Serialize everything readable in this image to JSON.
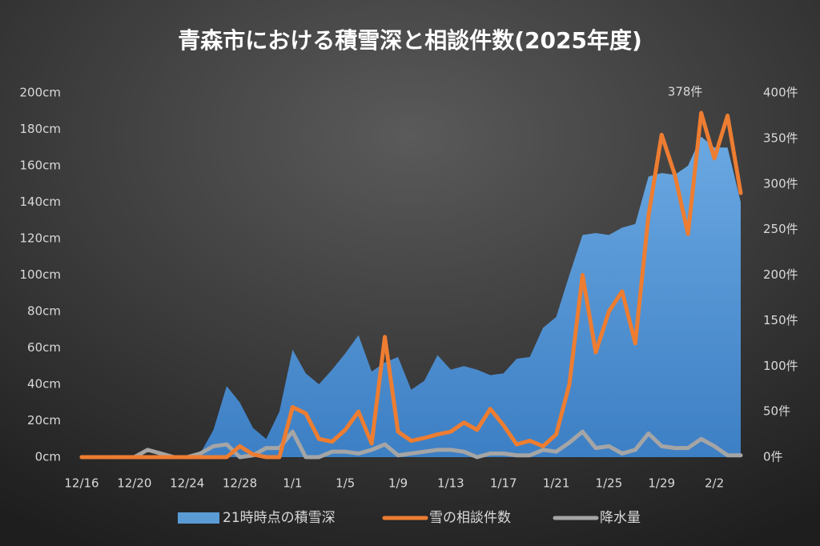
{
  "chart_data": {
    "type": "line",
    "title": "青森市における積雪深と相談件数(2025年度)",
    "categories": [
      "12/16",
      null,
      null,
      null,
      "12/20",
      null,
      null,
      null,
      "12/24",
      null,
      null,
      null,
      "12/28",
      null,
      null,
      null,
      "1/1",
      null,
      null,
      null,
      "1/5",
      null,
      null,
      null,
      "1/9",
      null,
      null,
      null,
      "1/13",
      null,
      null,
      null,
      "1/17",
      null,
      null,
      null,
      "1/21",
      null,
      null,
      null,
      "1/25",
      null,
      null,
      null,
      "1/29",
      null,
      null,
      null,
      "2/2",
      null,
      null
    ],
    "series": [
      {
        "name": "21時時点の積雪深",
        "type": "area",
        "color": "#5b9bd5",
        "axis": "y",
        "values": [
          0,
          0,
          0,
          0,
          0,
          0,
          0,
          0,
          0,
          2,
          15,
          39,
          30,
          16,
          10,
          25,
          59,
          46,
          40,
          48,
          57,
          67,
          47,
          52,
          55,
          37,
          42,
          56,
          48,
          50,
          48,
          45,
          46,
          54,
          55,
          71,
          77,
          100,
          122,
          123,
          122,
          126,
          128,
          154,
          156,
          155,
          160,
          176,
          170,
          170,
          140
        ]
      },
      {
        "name": "雪の相談件数",
        "type": "line",
        "color": "#ed7d31",
        "axis": "y2",
        "values": [
          0,
          0,
          0,
          0,
          0,
          0,
          0,
          0,
          0,
          0,
          0,
          0,
          12,
          3,
          0,
          0,
          55,
          48,
          20,
          17,
          30,
          50,
          15,
          132,
          28,
          18,
          21,
          25,
          28,
          38,
          30,
          53,
          35,
          14,
          18,
          12,
          25,
          80,
          200,
          115,
          160,
          182,
          125,
          265,
          354,
          310,
          245,
          378,
          328,
          375,
          290
        ],
        "value_labels": [
          null,
          null,
          null,
          null,
          null,
          null,
          null,
          null,
          null,
          null,
          null,
          null,
          null,
          null,
          null,
          null,
          null,
          null,
          null,
          null,
          null,
          null,
          null,
          null,
          null,
          null,
          null,
          null,
          null,
          null,
          null,
          null,
          null,
          null,
          null,
          null,
          null,
          null,
          null,
          null,
          null,
          null,
          null,
          null,
          null,
          null,
          null,
          "378件",
          null,
          null,
          null
        ]
      },
      {
        "name": "降水量",
        "type": "line",
        "color": "#a5a5a5",
        "axis": "y",
        "values": [
          0,
          0,
          0,
          0,
          0,
          4,
          2,
          0,
          0,
          2,
          6,
          7,
          0,
          1,
          5,
          5,
          14,
          0,
          0,
          3,
          3,
          2,
          4,
          7,
          1,
          2,
          3,
          4,
          4,
          3,
          0,
          2,
          2,
          1,
          1,
          4,
          3,
          8,
          14,
          5,
          6,
          2,
          4,
          13,
          6,
          5,
          5,
          10,
          6,
          1,
          1
        ]
      }
    ],
    "ylim": [
      0,
      200
    ],
    "yticks": [
      {
        "value": 0,
        "label": "0cm"
      },
      {
        "value": 20,
        "label": "20cm"
      },
      {
        "value": 40,
        "label": "40cm"
      },
      {
        "value": 60,
        "label": "60cm"
      },
      {
        "value": 80,
        "label": "80cm"
      },
      {
        "value": 100,
        "label": "100cm"
      },
      {
        "value": 120,
        "label": "120cm"
      },
      {
        "value": 140,
        "label": "140cm"
      },
      {
        "value": 160,
        "label": "160cm"
      },
      {
        "value": 180,
        "label": "180cm"
      },
      {
        "value": 200,
        "label": "200cm"
      }
    ],
    "y2lim": [
      0,
      400
    ],
    "y2ticks": [
      {
        "value": 0,
        "label": "0件"
      },
      {
        "value": 50,
        "label": "50件"
      },
      {
        "value": 100,
        "label": "100件"
      },
      {
        "value": 150,
        "label": "150件"
      },
      {
        "value": 200,
        "label": "200件"
      },
      {
        "value": 250,
        "label": "250件"
      },
      {
        "value": 300,
        "label": "300件"
      },
      {
        "value": 350,
        "label": "350件"
      },
      {
        "value": 400,
        "label": "400件"
      }
    ],
    "legend": "bottom"
  }
}
